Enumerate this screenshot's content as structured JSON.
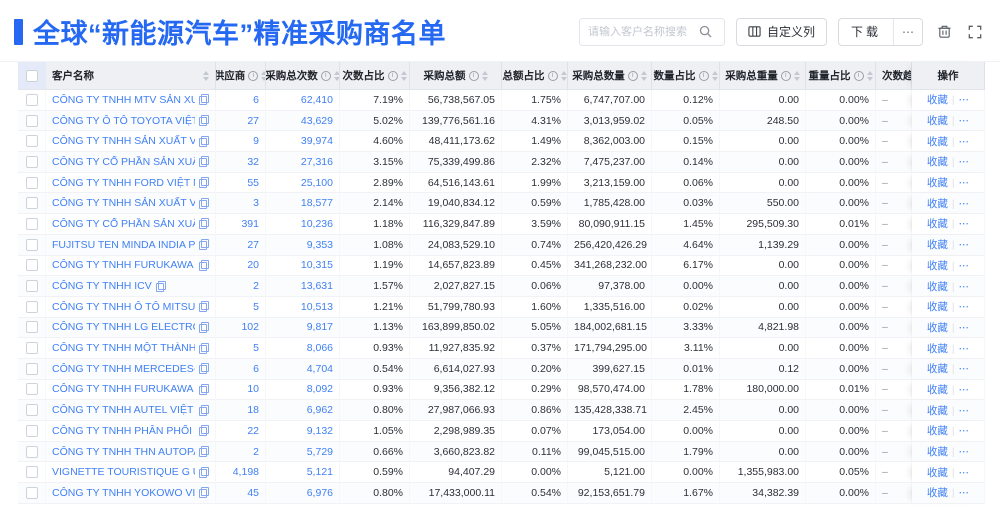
{
  "header": {
    "title": "全球“新能源汽车”精准采购商名单",
    "search_placeholder": "请输入客户名称搜索",
    "customize_columns": "自定义列",
    "download": "下载",
    "more": "⋯"
  },
  "colors": {
    "accent": "#2569f2",
    "link": "#4080f5",
    "header_bg": "#eef0f4"
  },
  "icons": [
    "search-icon",
    "columns-icon",
    "trash-icon",
    "fullscreen-icon",
    "copy-icon",
    "info-icon",
    "sort-carets"
  ],
  "table": {
    "favorite_label": "收藏",
    "row_more_label": "⋯",
    "columns": [
      {
        "key": "check",
        "label": "",
        "info": false,
        "sort": false
      },
      {
        "key": "name",
        "label": "客户名称",
        "info": false,
        "sort": true
      },
      {
        "key": "supplier",
        "label": "供应商",
        "info": true,
        "sort": true
      },
      {
        "key": "times",
        "label": "采购总次数",
        "info": true,
        "sort": true
      },
      {
        "key": "times_pct",
        "label": "次数占比",
        "info": true,
        "sort": true
      },
      {
        "key": "amount",
        "label": "采购总额",
        "info": true,
        "sort": true
      },
      {
        "key": "amount_pct",
        "label": "总额占比",
        "info": true,
        "sort": true
      },
      {
        "key": "qty",
        "label": "采购总数量",
        "info": true,
        "sort": true
      },
      {
        "key": "qty_pct",
        "label": "数量占比",
        "info": true,
        "sort": true
      },
      {
        "key": "weight",
        "label": "采购总重量",
        "info": true,
        "sort": true
      },
      {
        "key": "weight_pct",
        "label": "重量占比",
        "info": true,
        "sort": true
      },
      {
        "key": "trend",
        "label": "次数趋势",
        "info": false,
        "sort": false
      },
      {
        "key": "action",
        "label": "操作",
        "info": false,
        "sort": false
      }
    ],
    "rows": [
      {
        "name": "CÔNG TY TNHH MTV SẢN XUẤ...",
        "supplier": "6",
        "times": "62,410",
        "times_pct": "7.19%",
        "amount": "56,738,567.05",
        "amount_pct": "1.75%",
        "qty": "6,747,707.00",
        "qty_pct": "0.12%",
        "weight": "0.00",
        "weight_pct": "0.00%",
        "trend": "–"
      },
      {
        "name": "CÔNG TY Ô TÔ TOYOTA VIỆT ...",
        "supplier": "27",
        "times": "43,629",
        "times_pct": "5.02%",
        "amount": "139,776,561.16",
        "amount_pct": "4.31%",
        "qty": "3,013,959.02",
        "qty_pct": "0.05%",
        "weight": "248.50",
        "weight_pct": "0.00%",
        "trend": "–"
      },
      {
        "name": "CÔNG TY TNHH SẢN XUẤT VÀ ...",
        "supplier": "9",
        "times": "39,974",
        "times_pct": "4.60%",
        "amount": "48,411,173.62",
        "amount_pct": "1.49%",
        "qty": "8,362,003.00",
        "qty_pct": "0.15%",
        "weight": "0.00",
        "weight_pct": "0.00%",
        "trend": "–"
      },
      {
        "name": "CÔNG TY CỔ PHẦN SẢN XUẤT...",
        "supplier": "32",
        "times": "27,316",
        "times_pct": "3.15%",
        "amount": "75,339,499.86",
        "amount_pct": "2.32%",
        "qty": "7,475,237.00",
        "qty_pct": "0.14%",
        "weight": "0.00",
        "weight_pct": "0.00%",
        "trend": "–"
      },
      {
        "name": "CÔNG TY TNHH FORD VIỆT NAM",
        "supplier": "55",
        "times": "25,100",
        "times_pct": "2.89%",
        "amount": "64,516,143.61",
        "amount_pct": "1.99%",
        "qty": "3,213,159.00",
        "qty_pct": "0.06%",
        "weight": "0.00",
        "weight_pct": "0.00%",
        "trend": "–"
      },
      {
        "name": "CÔNG TY TNHH SẢN XUẤT VÀ ...",
        "supplier": "3",
        "times": "18,577",
        "times_pct": "2.14%",
        "amount": "19,040,834.12",
        "amount_pct": "0.59%",
        "qty": "1,785,428.00",
        "qty_pct": "0.03%",
        "weight": "550.00",
        "weight_pct": "0.00%",
        "trend": "–"
      },
      {
        "name": "CÔNG TY CỔ PHẦN SẢN XUẤT...",
        "supplier": "391",
        "times": "10,236",
        "times_pct": "1.18%",
        "amount": "116,329,847.89",
        "amount_pct": "3.59%",
        "qty": "80,090,911.15",
        "qty_pct": "1.45%",
        "weight": "295,509.30",
        "weight_pct": "0.01%",
        "trend": "–"
      },
      {
        "name": "FUJITSU TEN MINDA INDIA PVT...",
        "supplier": "27",
        "times": "9,353",
        "times_pct": "1.08%",
        "amount": "24,083,529.10",
        "amount_pct": "0.74%",
        "qty": "256,420,426.29",
        "qty_pct": "4.64%",
        "weight": "1,139.29",
        "weight_pct": "0.00%",
        "trend": "–"
      },
      {
        "name": "CÔNG TY TNHH FURUKAWA A...",
        "supplier": "20",
        "times": "10,315",
        "times_pct": "1.19%",
        "amount": "14,657,823.89",
        "amount_pct": "0.45%",
        "qty": "341,268,232.00",
        "qty_pct": "6.17%",
        "weight": "0.00",
        "weight_pct": "0.00%",
        "trend": "–"
      },
      {
        "name": "CÔNG TY TNHH ICV",
        "supplier": "2",
        "times": "13,631",
        "times_pct": "1.57%",
        "amount": "2,027,827.15",
        "amount_pct": "0.06%",
        "qty": "97,378.00",
        "qty_pct": "0.00%",
        "weight": "0.00",
        "weight_pct": "0.00%",
        "trend": "–"
      },
      {
        "name": "CÔNG TY TNHH Ô TÔ MITSUBI...",
        "supplier": "5",
        "times": "10,513",
        "times_pct": "1.21%",
        "amount": "51,799,780.93",
        "amount_pct": "1.60%",
        "qty": "1,335,516.00",
        "qty_pct": "0.02%",
        "weight": "0.00",
        "weight_pct": "0.00%",
        "trend": "–"
      },
      {
        "name": "CÔNG TY TNHH LG ELECTRON...",
        "supplier": "102",
        "times": "9,817",
        "times_pct": "1.13%",
        "amount": "163,899,850.02",
        "amount_pct": "5.05%",
        "qty": "184,002,681.15",
        "qty_pct": "3.33%",
        "weight": "4,821.98",
        "weight_pct": "0.00%",
        "trend": "–"
      },
      {
        "name": "CÔNG TY TNHH MỘT THÀNH V...",
        "supplier": "5",
        "times": "8,066",
        "times_pct": "0.93%",
        "amount": "11,927,835.92",
        "amount_pct": "0.37%",
        "qty": "171,794,295.00",
        "qty_pct": "3.11%",
        "weight": "0.00",
        "weight_pct": "0.00%",
        "trend": "–"
      },
      {
        "name": "CÔNG TY TNHH MERCEDES-B...",
        "supplier": "6",
        "times": "4,704",
        "times_pct": "0.54%",
        "amount": "6,614,027.93",
        "amount_pct": "0.20%",
        "qty": "399,627.15",
        "qty_pct": "0.01%",
        "weight": "0.12",
        "weight_pct": "0.00%",
        "trend": "–"
      },
      {
        "name": "CÔNG TY TNHH FURUKAWA A...",
        "supplier": "10",
        "times": "8,092",
        "times_pct": "0.93%",
        "amount": "9,356,382.12",
        "amount_pct": "0.29%",
        "qty": "98,570,474.00",
        "qty_pct": "1.78%",
        "weight": "180,000.00",
        "weight_pct": "0.01%",
        "trend": "–"
      },
      {
        "name": "CÔNG TY TNHH AUTEL VIỆT N...",
        "supplier": "18",
        "times": "6,962",
        "times_pct": "0.80%",
        "amount": "27,987,066.93",
        "amount_pct": "0.86%",
        "qty": "135,428,338.71",
        "qty_pct": "2.45%",
        "weight": "0.00",
        "weight_pct": "0.00%",
        "trend": "–"
      },
      {
        "name": "CÔNG TY TNHH PHÂN PHỐI T...",
        "supplier": "22",
        "times": "9,132",
        "times_pct": "1.05%",
        "amount": "2,298,989.35",
        "amount_pct": "0.07%",
        "qty": "173,054.00",
        "qty_pct": "0.00%",
        "weight": "0.00",
        "weight_pct": "0.00%",
        "trend": "–"
      },
      {
        "name": "CÔNG TY TNHH THN AUTOPAR...",
        "supplier": "2",
        "times": "5,729",
        "times_pct": "0.66%",
        "amount": "3,660,823.82",
        "amount_pct": "0.11%",
        "qty": "99,045,515.00",
        "qty_pct": "1.79%",
        "weight": "0.00",
        "weight_pct": "0.00%",
        "trend": "–"
      },
      {
        "name": "VIGNETTE TOURISTIQUE G UNI...",
        "supplier": "4,198",
        "times": "5,121",
        "times_pct": "0.59%",
        "amount": "94,407.29",
        "amount_pct": "0.00%",
        "qty": "5,121.00",
        "qty_pct": "0.00%",
        "weight": "1,355,983.00",
        "weight_pct": "0.05%",
        "trend": "–"
      },
      {
        "name": "CÔNG TY TNHH YOKOWO VIỆT...",
        "supplier": "45",
        "times": "6,976",
        "times_pct": "0.80%",
        "amount": "17,433,000.11",
        "amount_pct": "0.54%",
        "qty": "92,153,651.79",
        "qty_pct": "1.67%",
        "weight": "34,382.39",
        "weight_pct": "0.00%",
        "trend": "–"
      }
    ]
  }
}
